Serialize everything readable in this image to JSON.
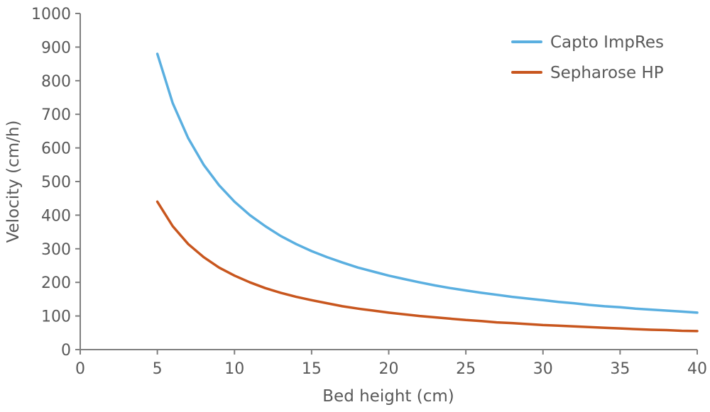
{
  "chart_data": {
    "type": "line",
    "title": "",
    "xlabel": "Bed height (cm)",
    "ylabel": "Velocity (cm/h)",
    "xlim": [
      0,
      40
    ],
    "ylim": [
      0,
      1000
    ],
    "xticks": [
      0,
      5,
      10,
      15,
      20,
      25,
      30,
      35,
      40
    ],
    "yticks": [
      0,
      100,
      200,
      300,
      400,
      500,
      600,
      700,
      800,
      900,
      1000
    ],
    "grid": false,
    "legend_position": "top-right",
    "x": [
      5,
      6,
      7,
      8,
      9,
      10,
      11,
      12,
      13,
      14,
      15,
      16,
      17,
      18,
      19,
      20,
      21,
      22,
      23,
      24,
      25,
      26,
      27,
      28,
      29,
      30,
      31,
      32,
      33,
      34,
      35,
      36,
      37,
      38,
      39,
      40
    ],
    "series": [
      {
        "name": "Capto ImpRes",
        "color": "#5aafe0",
        "values": [
          880,
          733,
          629,
          550,
          489,
          440,
          400,
          367,
          338,
          314,
          293,
          275,
          259,
          244,
          232,
          220,
          210,
          200,
          191,
          183,
          176,
          169,
          163,
          157,
          152,
          147,
          142,
          138,
          133,
          129,
          126,
          122,
          119,
          116,
          113,
          110
        ]
      },
      {
        "name": "Sepharose HP",
        "color": "#c8561e",
        "values": [
          440,
          367,
          314,
          275,
          244,
          220,
          200,
          183,
          169,
          157,
          147,
          138,
          129,
          122,
          116,
          110,
          105,
          100,
          96,
          92,
          88,
          85,
          81,
          79,
          76,
          73,
          71,
          69,
          67,
          65,
          63,
          61,
          59,
          58,
          56,
          55
        ]
      }
    ]
  }
}
